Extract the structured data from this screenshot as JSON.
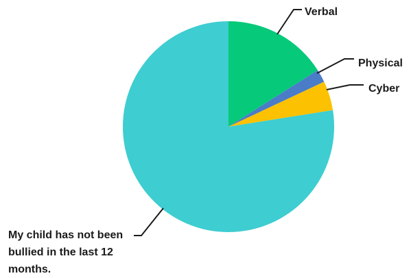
{
  "chart_data": {
    "type": "pie",
    "slices": [
      {
        "label": "Verbal",
        "value": 16,
        "color": "#07C97A"
      },
      {
        "label": "Physical",
        "value": 2,
        "color": "#4A7CC7"
      },
      {
        "label": "Cyber",
        "value": 4.5,
        "color": "#FCC100"
      },
      {
        "label": "My child has not been bullied in the last 12 months.",
        "value": 77.5,
        "color": "#3ECDD1"
      }
    ],
    "title": "",
    "legend": "none"
  }
}
